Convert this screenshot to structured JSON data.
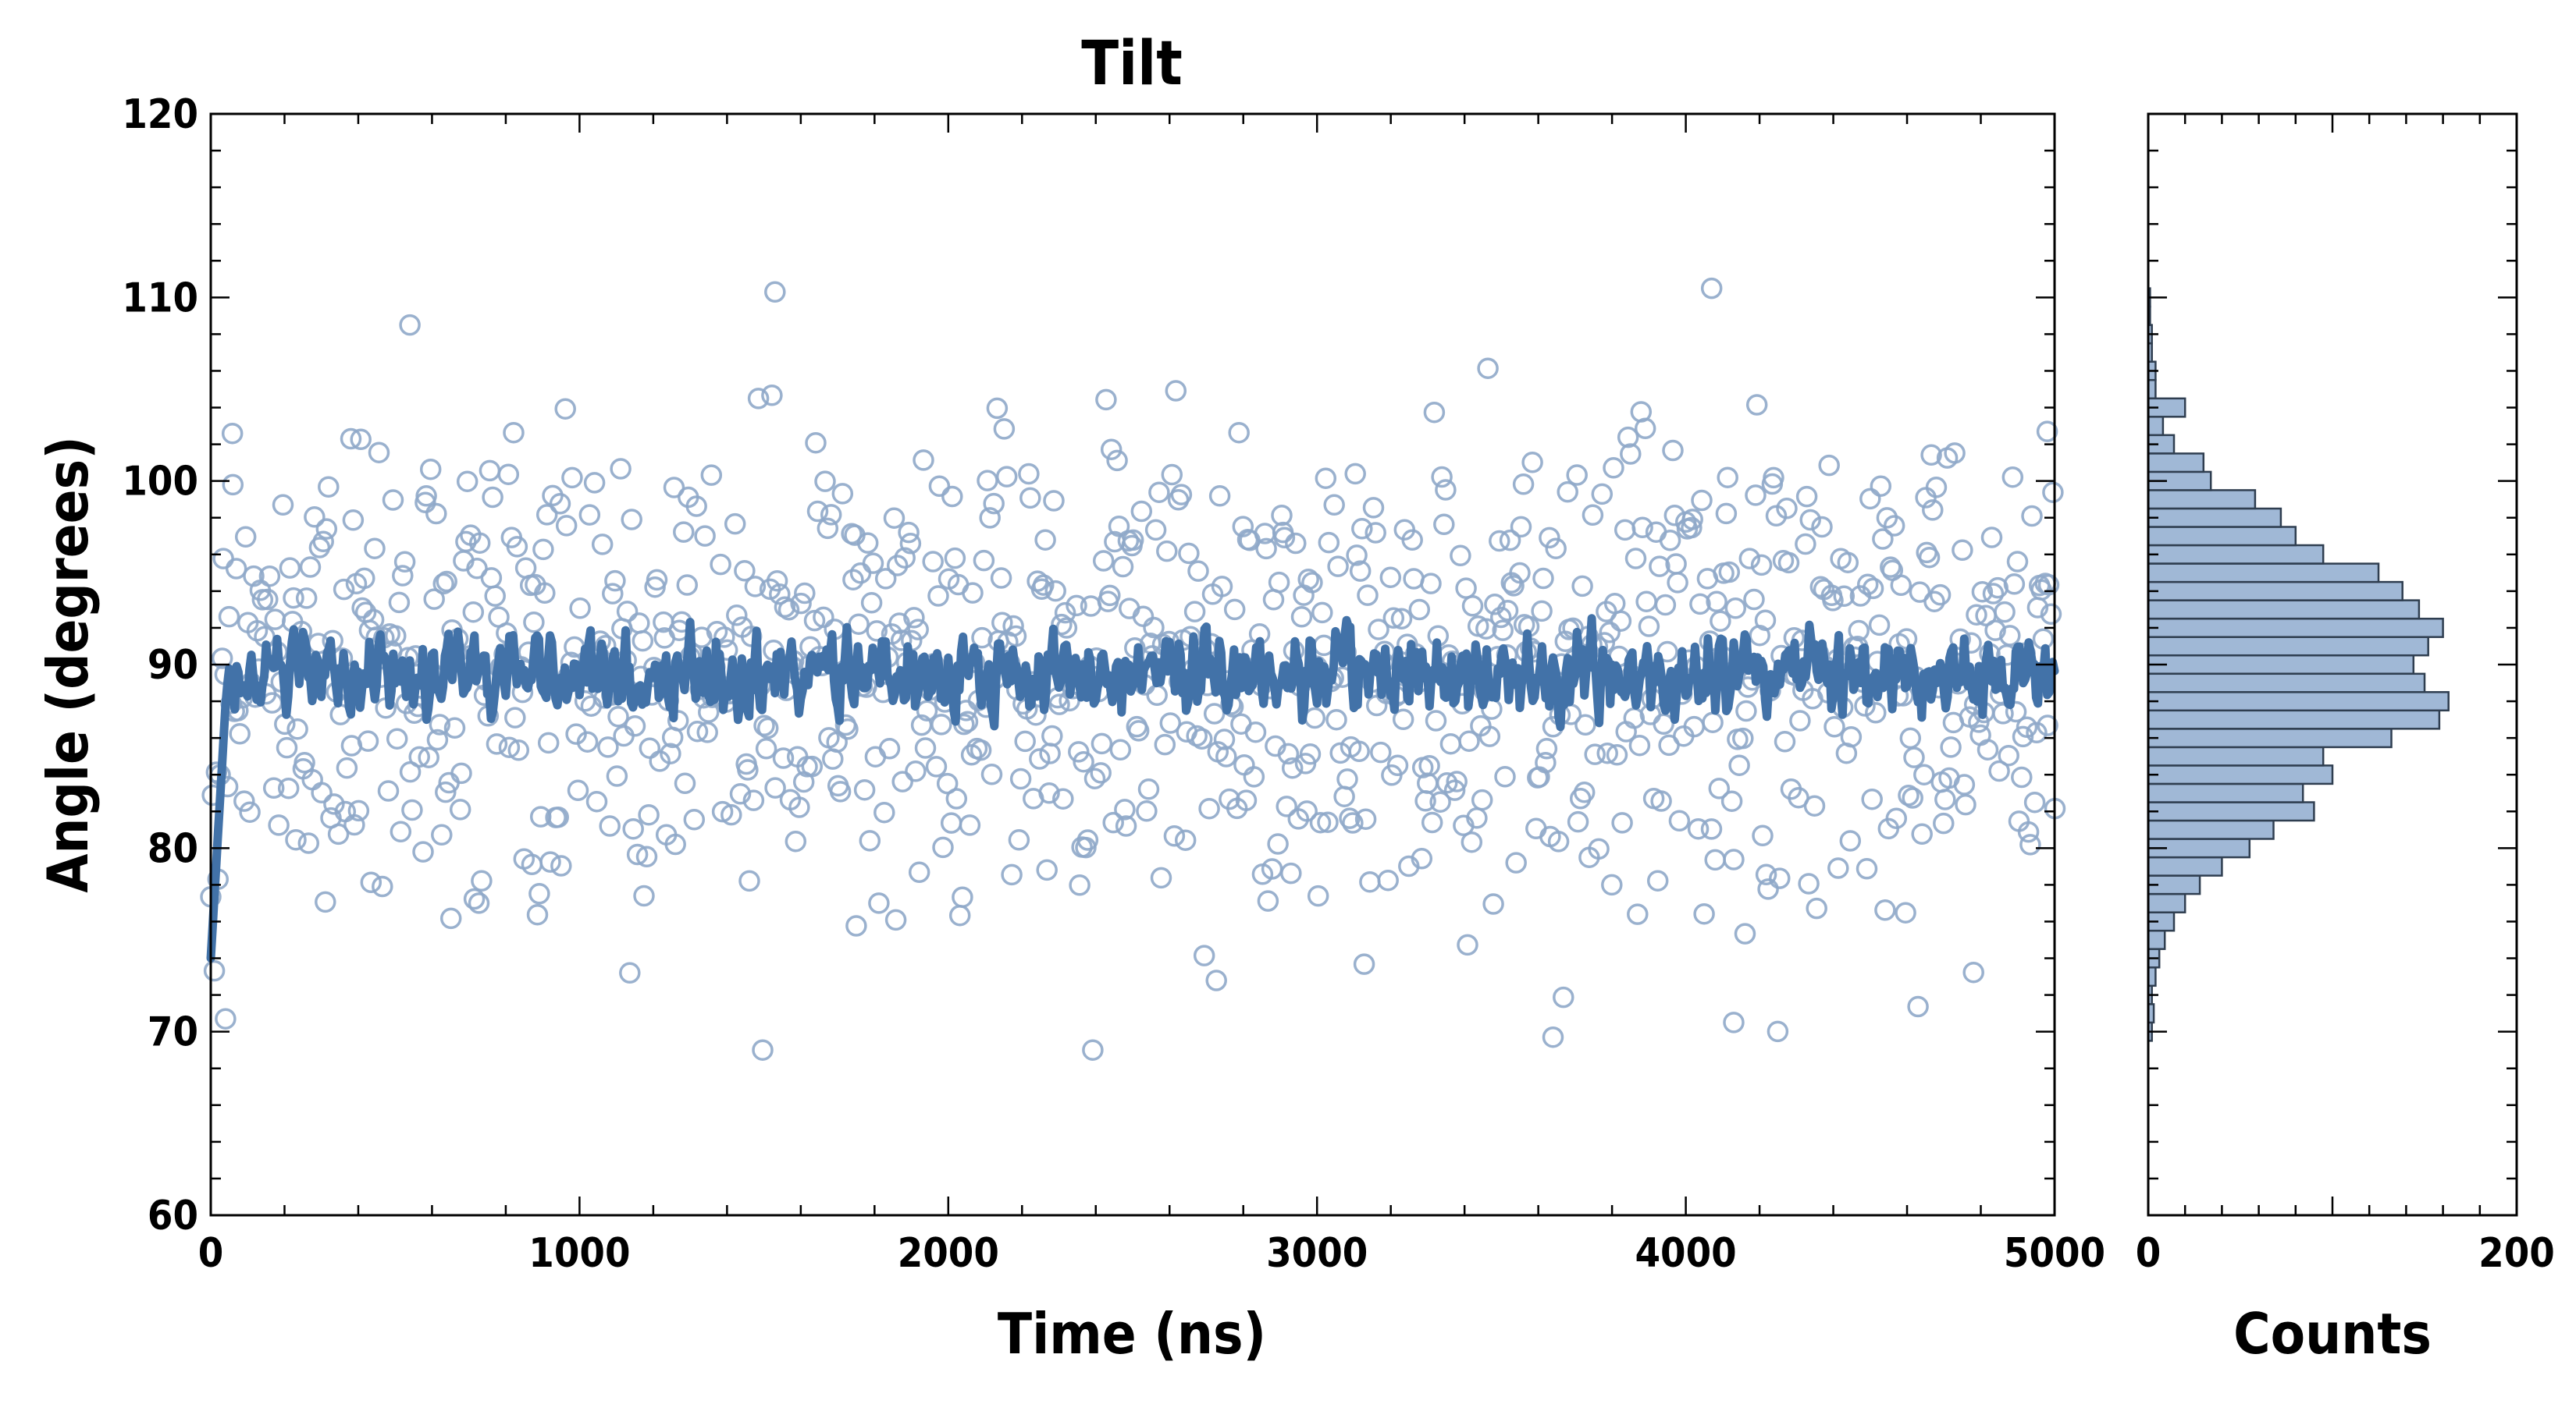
{
  "chart_data": [
    {
      "type": "scatter",
      "title": "Tilt",
      "xlabel": "Time (ns)",
      "ylabel": "Angle (degrees)",
      "xlim": [
        0,
        5000
      ],
      "ylim": [
        60,
        120
      ],
      "xticks": [
        "0",
        "1000",
        "2000",
        "3000",
        "4000",
        "5000"
      ],
      "yticks": [
        "60",
        "70",
        "80",
        "90",
        "100",
        "110",
        "120"
      ],
      "grid": false,
      "series": [
        {
          "kind": "scatter",
          "marker": "open-circle",
          "color": "#8fa9c9",
          "sampling": {
            "x_start": 0,
            "x_end": 5000,
            "count": 1000
          },
          "approx_mean": 89.5,
          "approx_stdev": 6.5,
          "example_points": [
            [
              40,
              70.7
            ],
            [
              60,
              99.8
            ],
            [
              380,
              102.3
            ],
            [
              540,
              108.5
            ],
            [
              1530,
              110.3
            ],
            [
              3640,
              69.7
            ],
            [
              4070,
              110.5
            ],
            [
              4130,
              70.5
            ],
            [
              4980,
              102.7
            ]
          ]
        },
        {
          "kind": "line",
          "color": "#4272a8",
          "description_values": "running average",
          "x_start": 0,
          "x_end": 5000,
          "y_start": 74,
          "y_plateau": 89.5,
          "range": [
            82.5,
            96
          ]
        }
      ]
    },
    {
      "type": "bar",
      "orientation": "horizontal",
      "xlabel": "Counts",
      "xlim": [
        0,
        200
      ],
      "xticks": [
        "0",
        "200"
      ],
      "ylim": [
        60,
        120
      ],
      "color": "#a0b8d6",
      "edge_color": "#2f3e50",
      "bin_width": 1,
      "bins": [
        {
          "y": 70,
          "count": 2
        },
        {
          "y": 71,
          "count": 3
        },
        {
          "y": 72,
          "count": 2
        },
        {
          "y": 73,
          "count": 4
        },
        {
          "y": 74,
          "count": 6
        },
        {
          "y": 75,
          "count": 9
        },
        {
          "y": 76,
          "count": 14
        },
        {
          "y": 77,
          "count": 20
        },
        {
          "y": 78,
          "count": 28
        },
        {
          "y": 79,
          "count": 40
        },
        {
          "y": 80,
          "count": 55
        },
        {
          "y": 81,
          "count": 68
        },
        {
          "y": 82,
          "count": 90
        },
        {
          "y": 83,
          "count": 84
        },
        {
          "y": 84,
          "count": 100
        },
        {
          "y": 85,
          "count": 95
        },
        {
          "y": 86,
          "count": 132
        },
        {
          "y": 87,
          "count": 158
        },
        {
          "y": 88,
          "count": 163
        },
        {
          "y": 89,
          "count": 150
        },
        {
          "y": 90,
          "count": 144
        },
        {
          "y": 91,
          "count": 152
        },
        {
          "y": 92,
          "count": 160
        },
        {
          "y": 93,
          "count": 147
        },
        {
          "y": 94,
          "count": 138
        },
        {
          "y": 95,
          "count": 125
        },
        {
          "y": 96,
          "count": 95
        },
        {
          "y": 97,
          "count": 80
        },
        {
          "y": 98,
          "count": 72
        },
        {
          "y": 99,
          "count": 58
        },
        {
          "y": 100,
          "count": 34
        },
        {
          "y": 101,
          "count": 30
        },
        {
          "y": 102,
          "count": 14
        },
        {
          "y": 103,
          "count": 8
        },
        {
          "y": 104,
          "count": 20
        },
        {
          "y": 105,
          "count": 4
        },
        {
          "y": 106,
          "count": 4
        },
        {
          "y": 107,
          "count": 2
        },
        {
          "y": 108,
          "count": 2
        },
        {
          "y": 109,
          "count": 1
        },
        {
          "y": 110,
          "count": 1
        }
      ]
    }
  ]
}
